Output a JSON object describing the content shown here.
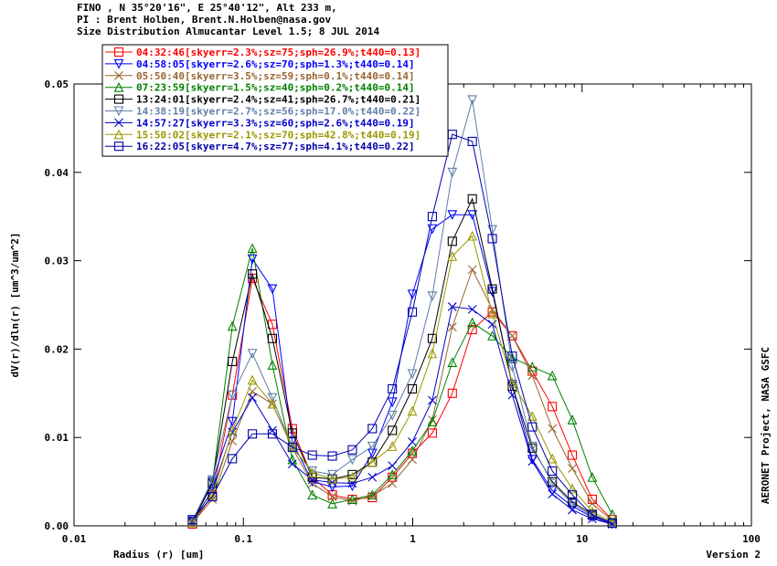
{
  "header": {
    "line1": "FINO , N 35°20'16\", E 25°40'12\", Alt 233 m,",
    "line2": "PI : Brent Holben, Brent.N.Holben@nasa.gov",
    "line3": "Size Distribution Almucantar Level 1.5; 8 JUL 2014"
  },
  "side_label": "AERONET Project, NASA GSFC",
  "version_label": "Version 2",
  "chart_data": {
    "type": "line",
    "xlabel": "Radius (r) [um]",
    "ylabel": "dV(r)/dln(r) [um^3/um^2]",
    "xscale": "log",
    "xlim": [
      0.01,
      100
    ],
    "ylim": [
      0,
      0.05
    ],
    "x_ticks": [
      0.01,
      0.1,
      1,
      10,
      100
    ],
    "x_tick_labels": [
      "0.01",
      "0.1",
      "1",
      "10",
      "100"
    ],
    "y_ticks": [
      0.0,
      0.01,
      0.02,
      0.03,
      0.04,
      0.05
    ],
    "y_tick_labels": [
      "0.00",
      "0.01",
      "0.02",
      "0.03",
      "0.04",
      "0.05"
    ],
    "grid": false,
    "legend_position": "top-left",
    "x": [
      0.05,
      0.0656,
      0.0861,
      0.113,
      0.1483,
      0.1946,
      0.2554,
      0.3352,
      0.4399,
      0.5774,
      0.7578,
      0.9946,
      1.3054,
      1.7132,
      2.2485,
      2.951,
      3.873,
      5.0831,
      6.6712,
      8.7555,
      11.4909,
      15.0811
    ],
    "series": [
      {
        "name": "04:32:46[skyerr=2.3%;sz=75;sph=26.9%;t440=0.13]",
        "color": "#ff0000",
        "marker": "square",
        "values": [
          0.0002,
          0.0035,
          0.0148,
          0.028,
          0.0228,
          0.011,
          0.0055,
          0.0035,
          0.003,
          0.0032,
          0.0055,
          0.0082,
          0.0105,
          0.015,
          0.0222,
          0.0242,
          0.0215,
          0.0175,
          0.0135,
          0.008,
          0.003,
          0.0007
        ]
      },
      {
        "name": "04:58:05[skyerr=2.6%;sz=70;sph=1.3%;t440=0.14]",
        "color": "#0000ff",
        "marker": "triangle-down",
        "values": [
          0.0005,
          0.005,
          0.0118,
          0.0302,
          0.0268,
          0.0095,
          0.005,
          0.0044,
          0.0045,
          0.0082,
          0.014,
          0.0262,
          0.0336,
          0.0352,
          0.0352,
          0.0265,
          0.016,
          0.0075,
          0.004,
          0.0022,
          0.001,
          0.0002
        ]
      },
      {
        "name": "05:50:40[skyerr=3.5%;sz=59;sph=0.1%;t440=0.14]",
        "color": "#996633",
        "marker": "x",
        "values": [
          0.0003,
          0.003,
          0.0096,
          0.0152,
          0.0138,
          0.0088,
          0.0048,
          0.0033,
          0.0028,
          0.0034,
          0.0048,
          0.0075,
          0.012,
          0.0225,
          0.029,
          0.0245,
          0.0215,
          0.017,
          0.011,
          0.0065,
          0.0025,
          0.0006
        ]
      },
      {
        "name": "07:23:59[skyerr=1.5%;sz=40;sph=0.2%;t440=0.14]",
        "color": "#008000",
        "marker": "triangle-up",
        "values": [
          0.0004,
          0.0048,
          0.0226,
          0.0314,
          0.0182,
          0.0075,
          0.0035,
          0.0025,
          0.003,
          0.0035,
          0.0058,
          0.0085,
          0.0118,
          0.0185,
          0.023,
          0.0215,
          0.019,
          0.018,
          0.017,
          0.012,
          0.0055,
          0.0013
        ]
      },
      {
        "name": "13:24:01[skyerr=2.4%;sz=41;sph=26.7%;t440=0.21]",
        "color": "#000000",
        "marker": "square",
        "values": [
          0.0004,
          0.0048,
          0.0186,
          0.0285,
          0.0212,
          0.0105,
          0.0055,
          0.0053,
          0.0058,
          0.0072,
          0.0108,
          0.0155,
          0.0212,
          0.0322,
          0.037,
          0.0268,
          0.0158,
          0.0088,
          0.005,
          0.0027,
          0.0013,
          0.0003
        ]
      },
      {
        "name": "14:38:19[skyerr=2.7%;sz=56;sph=17.0%;t440=0.22]",
        "color": "#5f7fa7",
        "marker": "triangle-down",
        "values": [
          0.0006,
          0.0052,
          0.0148,
          0.0195,
          0.0145,
          0.0088,
          0.0062,
          0.0058,
          0.0075,
          0.009,
          0.0125,
          0.0172,
          0.026,
          0.04,
          0.0482,
          0.0335,
          0.018,
          0.009,
          0.0048,
          0.0025,
          0.0011,
          0.0003
        ]
      },
      {
        "name": "14:57:27[skyerr=3.3%;sz=60;sph=2.6%;t440=0.19]",
        "color": "#0000cc",
        "marker": "x",
        "values": [
          0.0005,
          0.004,
          0.0106,
          0.0145,
          0.0108,
          0.007,
          0.0052,
          0.0049,
          0.0048,
          0.0055,
          0.0068,
          0.0095,
          0.0142,
          0.0248,
          0.0245,
          0.0228,
          0.0148,
          0.0073,
          0.0036,
          0.0018,
          0.0008,
          0.0002
        ]
      },
      {
        "name": "15:50:02[skyerr=2.1%;sz=70;sph=42.8%;t440=0.19]",
        "color": "#999900",
        "marker": "triangle-up",
        "values": [
          0.0004,
          0.0035,
          0.0108,
          0.0165,
          0.0138,
          0.009,
          0.006,
          0.0053,
          0.0055,
          0.0072,
          0.009,
          0.013,
          0.0195,
          0.0305,
          0.0328,
          0.024,
          0.0162,
          0.0124,
          0.0076,
          0.0042,
          0.0016,
          0.0004
        ]
      },
      {
        "name": "16:22:05[skyerr=4.7%;sz=77;sph=4.1%;t440=0.22]",
        "color": "#0000aa",
        "marker": "square",
        "values": [
          0.0007,
          0.0033,
          0.0076,
          0.0104,
          0.0104,
          0.0089,
          0.008,
          0.0079,
          0.0086,
          0.011,
          0.0155,
          0.0242,
          0.035,
          0.0443,
          0.0435,
          0.0325,
          0.0192,
          0.0112,
          0.0062,
          0.0035,
          0.0012,
          0.0003
        ]
      }
    ]
  }
}
